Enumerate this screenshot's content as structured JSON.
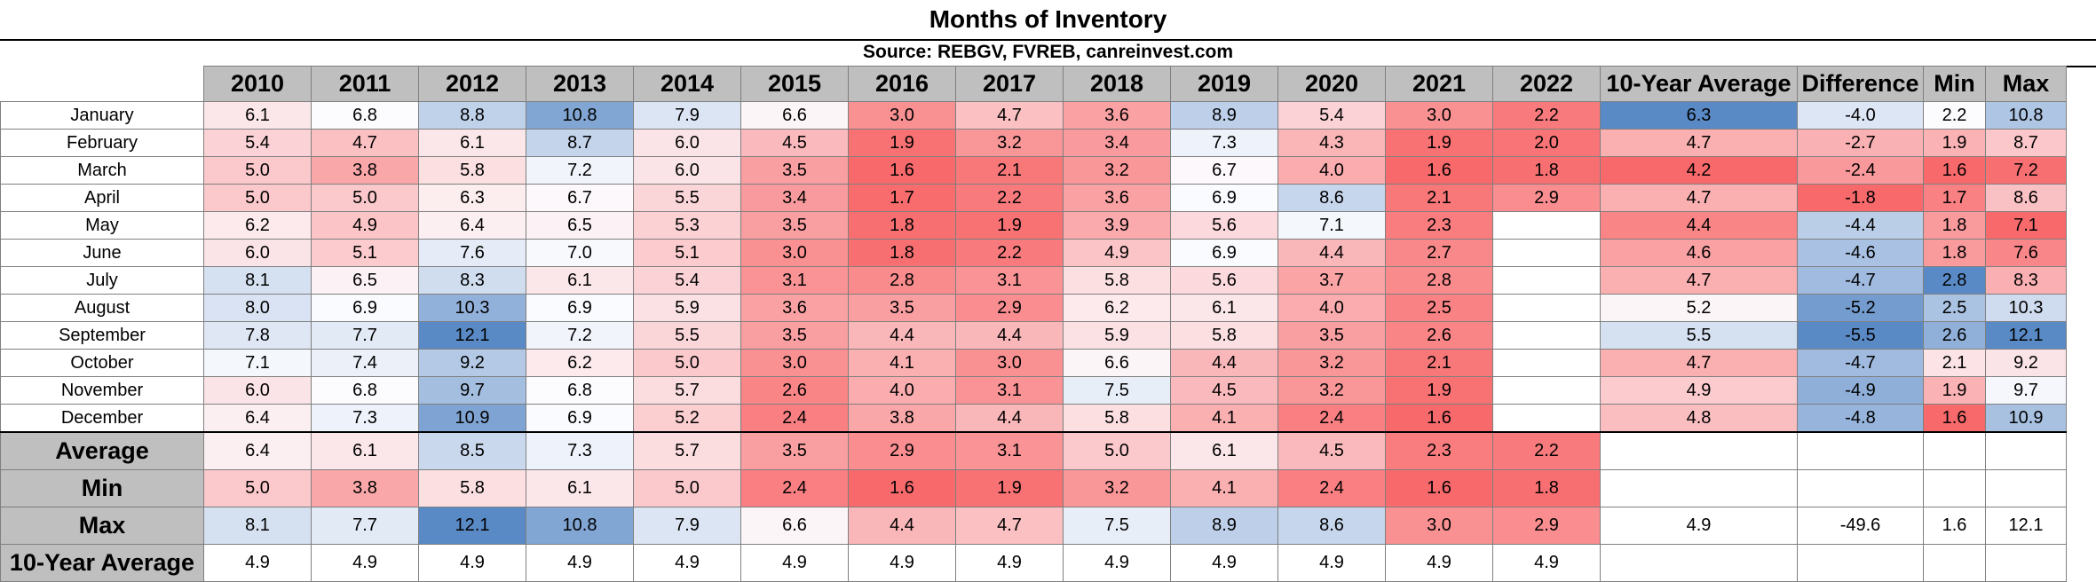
{
  "title": "Months of Inventory",
  "source": "Source: REBGV, FVREB, canreinvest.com",
  "colors": {
    "low": "#5a8ac6",
    "mid": "#fcfcff",
    "high": "#f8696b",
    "header_bg": "#bfbfbf"
  },
  "columns": [
    "2010",
    "2011",
    "2012",
    "2013",
    "2014",
    "2015",
    "2016",
    "2017",
    "2018",
    "2019",
    "2020",
    "2021",
    "2022",
    "10-Year Average",
    "Difference",
    "Min",
    "Max"
  ],
  "months": [
    "January",
    "February",
    "March",
    "April",
    "May",
    "June",
    "July",
    "August",
    "September",
    "October",
    "November",
    "December"
  ],
  "summary_labels": [
    "Average",
    "Min",
    "Max",
    "10-Year Average"
  ],
  "chart_data": {
    "type": "table",
    "title": "Months of Inventory",
    "subtitle": "Source: REBGV, FVREB, canreinvest.com",
    "rows": [
      {
        "label": "January",
        "values": [
          "6.1",
          "6.8",
          "8.8",
          "10.8",
          "7.9",
          "6.6",
          "3.0",
          "4.7",
          "3.6",
          "8.9",
          "5.4",
          "3.0",
          "2.2",
          "6.3",
          "-4.0",
          "2.2",
          "10.8"
        ]
      },
      {
        "label": "February",
        "values": [
          "5.4",
          "4.7",
          "6.1",
          "8.7",
          "6.0",
          "4.5",
          "1.9",
          "3.2",
          "3.4",
          "7.3",
          "4.3",
          "1.9",
          "2.0",
          "4.7",
          "-2.7",
          "1.9",
          "8.7"
        ]
      },
      {
        "label": "March",
        "values": [
          "5.0",
          "3.8",
          "5.8",
          "7.2",
          "6.0",
          "3.5",
          "1.6",
          "2.1",
          "3.2",
          "6.7",
          "4.0",
          "1.6",
          "1.8",
          "4.2",
          "-2.4",
          "1.6",
          "7.2"
        ]
      },
      {
        "label": "April",
        "values": [
          "5.0",
          "5.0",
          "6.3",
          "6.7",
          "5.5",
          "3.4",
          "1.7",
          "2.2",
          "3.6",
          "6.9",
          "8.6",
          "2.1",
          "2.9",
          "4.7",
          "-1.8",
          "1.7",
          "8.6"
        ]
      },
      {
        "label": "May",
        "values": [
          "6.2",
          "4.9",
          "6.4",
          "6.5",
          "5.3",
          "3.5",
          "1.8",
          "1.9",
          "3.9",
          "5.6",
          "7.1",
          "2.3",
          "",
          "4.4",
          "-4.4",
          "1.8",
          "7.1"
        ]
      },
      {
        "label": "June",
        "values": [
          "6.0",
          "5.1",
          "7.6",
          "7.0",
          "5.1",
          "3.0",
          "1.8",
          "2.2",
          "4.9",
          "6.9",
          "4.4",
          "2.7",
          "",
          "4.6",
          "-4.6",
          "1.8",
          "7.6"
        ]
      },
      {
        "label": "July",
        "values": [
          "8.1",
          "6.5",
          "8.3",
          "6.1",
          "5.4",
          "3.1",
          "2.8",
          "3.1",
          "5.8",
          "5.6",
          "3.7",
          "2.8",
          "",
          "4.7",
          "-4.7",
          "2.8",
          "8.3"
        ]
      },
      {
        "label": "August",
        "values": [
          "8.0",
          "6.9",
          "10.3",
          "6.9",
          "5.9",
          "3.6",
          "3.5",
          "2.9",
          "6.2",
          "6.1",
          "4.0",
          "2.5",
          "",
          "5.2",
          "-5.2",
          "2.5",
          "10.3"
        ]
      },
      {
        "label": "September",
        "values": [
          "7.8",
          "7.7",
          "12.1",
          "7.2",
          "5.5",
          "3.5",
          "4.4",
          "4.4",
          "5.9",
          "5.8",
          "3.5",
          "2.6",
          "",
          "5.5",
          "-5.5",
          "2.6",
          "12.1"
        ]
      },
      {
        "label": "October",
        "values": [
          "7.1",
          "7.4",
          "9.2",
          "6.2",
          "5.0",
          "3.0",
          "4.1",
          "3.0",
          "6.6",
          "4.4",
          "3.2",
          "2.1",
          "",
          "4.7",
          "-4.7",
          "2.1",
          "9.2"
        ]
      },
      {
        "label": "November",
        "values": [
          "6.0",
          "6.8",
          "9.7",
          "6.8",
          "5.7",
          "2.6",
          "4.0",
          "3.1",
          "7.5",
          "4.5",
          "3.2",
          "1.9",
          "",
          "4.9",
          "-4.9",
          "1.9",
          "9.7"
        ]
      },
      {
        "label": "December",
        "values": [
          "6.4",
          "7.3",
          "10.9",
          "6.9",
          "5.2",
          "2.4",
          "3.8",
          "4.4",
          "5.8",
          "4.1",
          "2.4",
          "1.6",
          "",
          "4.8",
          "-4.8",
          "1.6",
          "10.9"
        ]
      }
    ],
    "summary_rows": [
      {
        "label": "Average",
        "values": [
          "6.4",
          "6.1",
          "8.5",
          "7.3",
          "5.7",
          "3.5",
          "2.9",
          "3.1",
          "5.0",
          "6.1",
          "4.5",
          "2.3",
          "2.2",
          "",
          "",
          "",
          ""
        ]
      },
      {
        "label": "Min",
        "values": [
          "5.0",
          "3.8",
          "5.8",
          "6.1",
          "5.0",
          "2.4",
          "1.6",
          "1.9",
          "3.2",
          "4.1",
          "2.4",
          "1.6",
          "1.8",
          "",
          "",
          "",
          ""
        ]
      },
      {
        "label": "Max",
        "values": [
          "8.1",
          "7.7",
          "12.1",
          "10.8",
          "7.9",
          "6.6",
          "4.4",
          "4.7",
          "7.5",
          "8.9",
          "8.6",
          "3.0",
          "2.9",
          "4.9",
          "-49.6",
          "1.6",
          "12.1"
        ]
      },
      {
        "label": "10-Year Average",
        "values": [
          "4.9",
          "4.9",
          "4.9",
          "4.9",
          "4.9",
          "4.9",
          "4.9",
          "4.9",
          "4.9",
          "4.9",
          "4.9",
          "4.9",
          "4.9",
          "",
          "",
          "",
          ""
        ]
      }
    ]
  }
}
